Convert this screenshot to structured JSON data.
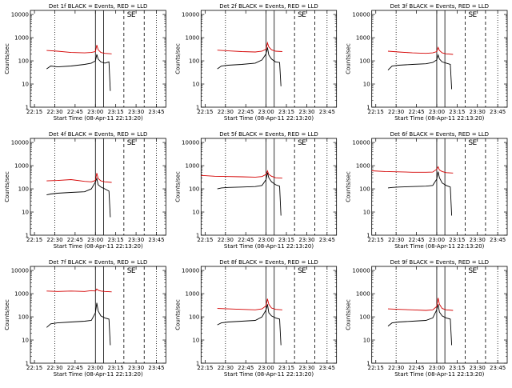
{
  "layout": {
    "rows": 3,
    "cols": 3
  },
  "colors": {
    "events": "#000000",
    "lld": "#d40000",
    "axis": "#000000"
  },
  "chart_data": [
    {
      "type": "line",
      "title": "Det 1f BLACK = Events, RED = LLD",
      "xlabel": "Start Time (08-Apr-11 22:13:20)",
      "ylabel": "Counts/sec",
      "y_scale": "log",
      "xlim": [
        0,
        100
      ],
      "ylim": [
        1,
        15000
      ],
      "x_tick_labels": [
        "22:15",
        "22:30",
        "22:45",
        "23:00",
        "23:15",
        "23:30",
        "23:45"
      ],
      "y_tick_labels": [
        "1",
        "10",
        "100",
        "1000",
        "10000"
      ],
      "annotations": [
        {
          "text": "S",
          "x": 73
        },
        {
          "text": "E",
          "x": 76
        }
      ],
      "series": [
        {
          "name": "LLD",
          "color": "red",
          "x": [
            12,
            20,
            30,
            40,
            45,
            48,
            49,
            50,
            52,
            55,
            60
          ],
          "y": [
            280,
            260,
            230,
            220,
            230,
            250,
            480,
            300,
            230,
            210,
            200
          ]
        },
        {
          "name": "Events",
          "color": "black",
          "x": [
            12,
            15,
            20,
            30,
            40,
            45,
            48,
            49,
            50,
            52,
            55,
            58,
            59
          ],
          "y": [
            45,
            60,
            55,
            60,
            70,
            80,
            100,
            190,
            120,
            90,
            80,
            90,
            5
          ]
        }
      ]
    },
    {
      "type": "line",
      "title": "Det 2f BLACK = Events, RED = LLD",
      "xlabel": "Start Time (08-Apr-11 22:13:20)",
      "ylabel": "Counts/sec",
      "y_scale": "log",
      "xlim": [
        0,
        100
      ],
      "ylim": [
        1,
        15000
      ],
      "x_tick_labels": [
        "22:15",
        "22:30",
        "22:45",
        "23:00",
        "23:15",
        "23:30",
        "23:45"
      ],
      "y_tick_labels": [
        "1",
        "10",
        "100",
        "1000",
        "10000"
      ],
      "annotations": [
        {
          "text": "S",
          "x": 73
        },
        {
          "text": "E",
          "x": 76
        }
      ],
      "series": [
        {
          "name": "LLD",
          "color": "red",
          "x": [
            12,
            20,
            30,
            40,
            45,
            48,
            49,
            50,
            52,
            55,
            60
          ],
          "y": [
            290,
            270,
            250,
            240,
            260,
            320,
            600,
            400,
            300,
            260,
            250
          ]
        },
        {
          "name": "Events",
          "color": "black",
          "x": [
            12,
            15,
            20,
            30,
            40,
            45,
            48,
            49,
            50,
            52,
            55,
            58,
            59
          ],
          "y": [
            45,
            60,
            65,
            70,
            80,
            110,
            200,
            380,
            180,
            120,
            90,
            85,
            8
          ]
        }
      ]
    },
    {
      "type": "line",
      "title": "Det 3f BLACK = Events, RED = LLD",
      "xlabel": "Start Time (08-Apr-11 22:13:20)",
      "ylabel": "Counts/sec",
      "y_scale": "log",
      "xlim": [
        0,
        100
      ],
      "ylim": [
        1,
        15000
      ],
      "x_tick_labels": [
        "22:15",
        "22:30",
        "22:45",
        "23:00",
        "23:15",
        "23:30",
        "23:45"
      ],
      "y_tick_labels": [
        "1",
        "10",
        "100",
        "1000",
        "10000"
      ],
      "annotations": [
        {
          "text": "S",
          "x": 73
        },
        {
          "text": "E",
          "x": 76
        }
      ],
      "series": [
        {
          "name": "LLD",
          "color": "red",
          "x": [
            12,
            20,
            30,
            40,
            45,
            48,
            49,
            50,
            52,
            55,
            60
          ],
          "y": [
            260,
            240,
            220,
            210,
            220,
            250,
            380,
            280,
            220,
            200,
            190
          ]
        },
        {
          "name": "Events",
          "color": "black",
          "x": [
            12,
            15,
            20,
            30,
            40,
            45,
            48,
            49,
            50,
            52,
            55,
            58,
            59
          ],
          "y": [
            40,
            60,
            65,
            70,
            75,
            85,
            110,
            180,
            120,
            90,
            80,
            70,
            6
          ]
        }
      ]
    },
    {
      "type": "line",
      "title": "Det 4f BLACK = Events, RED = LLD",
      "xlabel": "Start Time (08-Apr-11 22:13:20)",
      "ylabel": "Counts/sec",
      "y_scale": "log",
      "xlim": [
        0,
        100
      ],
      "ylim": [
        1,
        15000
      ],
      "x_tick_labels": [
        "22:15",
        "22:30",
        "22:45",
        "23:00",
        "23:15",
        "23:30",
        "23:45"
      ],
      "y_tick_labels": [
        "1",
        "10",
        "100",
        "1000",
        "10000"
      ],
      "annotations": [
        {
          "text": "S",
          "x": 73
        },
        {
          "text": "E",
          "x": 76
        }
      ],
      "series": [
        {
          "name": "LLD",
          "color": "red",
          "x": [
            12,
            20,
            30,
            40,
            45,
            48,
            49,
            50,
            52,
            55,
            60
          ],
          "y": [
            220,
            230,
            250,
            210,
            200,
            230,
            480,
            280,
            220,
            200,
            190
          ]
        },
        {
          "name": "Events",
          "color": "black",
          "x": [
            12,
            15,
            20,
            30,
            40,
            45,
            48,
            49,
            50,
            52,
            55,
            58,
            59
          ],
          "y": [
            55,
            60,
            65,
            70,
            75,
            100,
            200,
            280,
            150,
            120,
            100,
            80,
            6
          ]
        }
      ]
    },
    {
      "type": "line",
      "title": "Det 5f BLACK = Events, RED = LLD",
      "xlabel": "Start Time (08-Apr-11 22:13:20)",
      "ylabel": "Counts/sec",
      "y_scale": "log",
      "xlim": [
        0,
        100
      ],
      "ylim": [
        1,
        15000
      ],
      "x_tick_labels": [
        "22:15",
        "22:30",
        "22:45",
        "23:00",
        "23:15",
        "23:30",
        "23:45"
      ],
      "y_tick_labels": [
        "1",
        "10",
        "100",
        "1000",
        "10000"
      ],
      "annotations": [
        {
          "text": "S",
          "x": 73
        },
        {
          "text": "E",
          "x": 76
        }
      ],
      "series": [
        {
          "name": "LLD",
          "color": "red",
          "x": [
            0,
            10,
            20,
            30,
            40,
            45,
            48,
            49,
            50,
            52,
            55,
            60
          ],
          "y": [
            380,
            350,
            340,
            330,
            320,
            340,
            420,
            600,
            420,
            350,
            300,
            290
          ]
        },
        {
          "name": "Events",
          "color": "black",
          "x": [
            12,
            15,
            20,
            30,
            40,
            45,
            48,
            49,
            50,
            52,
            55,
            58,
            59
          ],
          "y": [
            100,
            110,
            115,
            120,
            125,
            140,
            250,
            500,
            300,
            200,
            150,
            130,
            7
          ]
        }
      ]
    },
    {
      "type": "line",
      "title": "Det 6f BLACK = Events, RED = LLD",
      "xlabel": "Start Time (08-Apr-11 22:13:20)",
      "ylabel": "Counts/sec",
      "y_scale": "log",
      "xlim": [
        0,
        100
      ],
      "ylim": [
        1,
        15000
      ],
      "x_tick_labels": [
        "22:15",
        "22:30",
        "22:45",
        "23:00",
        "23:15",
        "23:30",
        "23:45"
      ],
      "y_tick_labels": [
        "1",
        "10",
        "100",
        "1000",
        "10000"
      ],
      "annotations": [
        {
          "text": "S",
          "x": 73
        },
        {
          "text": "E",
          "x": 76
        }
      ],
      "series": [
        {
          "name": "LLD",
          "color": "red",
          "x": [
            0,
            10,
            20,
            30,
            40,
            45,
            48,
            49,
            50,
            52,
            55,
            60
          ],
          "y": [
            600,
            560,
            540,
            520,
            520,
            530,
            700,
            900,
            650,
            560,
            500,
            480
          ]
        },
        {
          "name": "Events",
          "color": "black",
          "x": [
            12,
            15,
            20,
            30,
            40,
            45,
            48,
            49,
            50,
            52,
            55,
            58,
            59
          ],
          "y": [
            110,
            115,
            120,
            125,
            130,
            140,
            260,
            550,
            300,
            180,
            140,
            120,
            7
          ]
        }
      ]
    },
    {
      "type": "line",
      "title": "Det 7f BLACK = Events, RED = LLD",
      "xlabel": "Start Time (08-Apr-11 22:13:20)",
      "ylabel": "Counts/sec",
      "y_scale": "log",
      "xlim": [
        0,
        100
      ],
      "ylim": [
        1,
        15000
      ],
      "x_tick_labels": [
        "22:15",
        "22:30",
        "22:45",
        "23:00",
        "23:15",
        "23:30",
        "23:45"
      ],
      "y_tick_labels": [
        "1",
        "10",
        "100",
        "1000",
        "10000"
      ],
      "annotations": [
        {
          "text": "S",
          "x": 73
        },
        {
          "text": "E",
          "x": 76
        }
      ],
      "series": [
        {
          "name": "LLD",
          "color": "red",
          "x": [
            12,
            20,
            30,
            40,
            45,
            48,
            49,
            50,
            52,
            55,
            60
          ],
          "y": [
            1300,
            1250,
            1300,
            1250,
            1350,
            1300,
            1600,
            1400,
            1300,
            1250,
            1200
          ]
        },
        {
          "name": "Events",
          "color": "black",
          "x": [
            12,
            15,
            20,
            30,
            40,
            45,
            48,
            49,
            50,
            52,
            55,
            58,
            59
          ],
          "y": [
            35,
            50,
            55,
            60,
            65,
            70,
            150,
            400,
            180,
            110,
            90,
            80,
            6
          ]
        }
      ]
    },
    {
      "type": "line",
      "title": "Det 8f BLACK = Events, RED = LLD",
      "xlabel": "Start Time (08-Apr-11 22:13:20)",
      "ylabel": "Counts/sec",
      "y_scale": "log",
      "xlim": [
        0,
        100
      ],
      "ylim": [
        1,
        15000
      ],
      "x_tick_labels": [
        "22:15",
        "22:30",
        "22:45",
        "23:00",
        "23:15",
        "23:30",
        "23:45"
      ],
      "y_tick_labels": [
        "1",
        "10",
        "100",
        "1000",
        "10000"
      ],
      "annotations": [
        {
          "text": "S",
          "x": 73
        },
        {
          "text": "E",
          "x": 76
        }
      ],
      "series": [
        {
          "name": "LLD",
          "color": "red",
          "x": [
            12,
            20,
            30,
            40,
            45,
            48,
            49,
            50,
            52,
            55,
            60
          ],
          "y": [
            230,
            220,
            210,
            200,
            220,
            300,
            600,
            350,
            240,
            210,
            200
          ]
        },
        {
          "name": "Events",
          "color": "black",
          "x": [
            12,
            15,
            20,
            30,
            40,
            45,
            48,
            49,
            50,
            52,
            55,
            58,
            59
          ],
          "y": [
            45,
            55,
            60,
            65,
            70,
            100,
            200,
            350,
            150,
            110,
            90,
            80,
            6
          ]
        }
      ]
    },
    {
      "type": "line",
      "title": "Det 9f BLACK = Events, RED = LLD",
      "xlabel": "Start Time (08-Apr-11 22:13:20)",
      "ylabel": "Counts/sec",
      "y_scale": "log",
      "xlim": [
        0,
        100
      ],
      "ylim": [
        1,
        15000
      ],
      "x_tick_labels": [
        "22:15",
        "22:30",
        "22:45",
        "23:00",
        "23:15",
        "23:30",
        "23:45"
      ],
      "y_tick_labels": [
        "1",
        "10",
        "100",
        "1000",
        "10000"
      ],
      "annotations": [
        {
          "text": "S",
          "x": 73
        },
        {
          "text": "E",
          "x": 76
        }
      ],
      "series": [
        {
          "name": "LLD",
          "color": "red",
          "x": [
            12,
            20,
            30,
            40,
            45,
            48,
            49,
            50,
            52,
            55,
            60
          ],
          "y": [
            220,
            210,
            200,
            190,
            200,
            280,
            650,
            350,
            230,
            200,
            190
          ]
        },
        {
          "name": "Events",
          "color": "black",
          "x": [
            12,
            15,
            20,
            30,
            40,
            45,
            48,
            49,
            50,
            52,
            55,
            58,
            59
          ],
          "y": [
            40,
            55,
            60,
            65,
            70,
            90,
            200,
            350,
            160,
            110,
            90,
            80,
            6
          ]
        }
      ]
    }
  ]
}
